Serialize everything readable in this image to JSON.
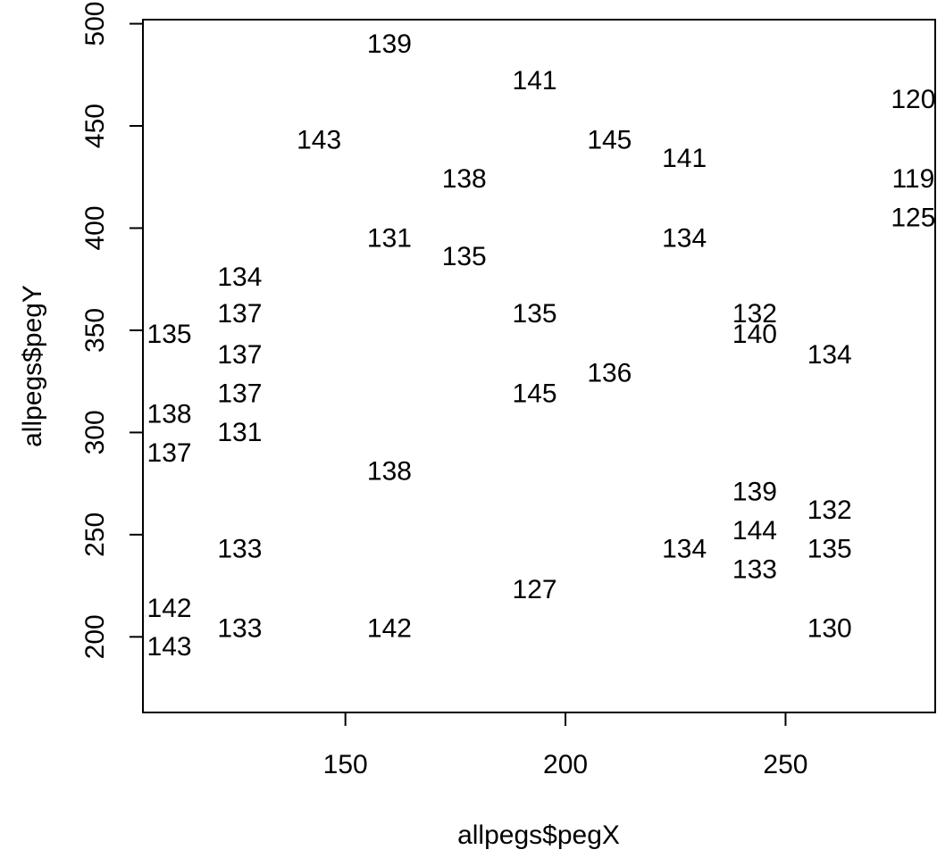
{
  "chart_data": {
    "type": "scatter",
    "title": "",
    "xlabel": "allpegs$pegX",
    "ylabel": "allpegs$pegY",
    "xlim": [
      104,
      284
    ],
    "ylim": [
      163,
      502
    ],
    "xticks": [
      150,
      200,
      250
    ],
    "yticks": [
      200,
      250,
      300,
      350,
      400,
      450,
      500
    ],
    "marker": "text-label",
    "grid": false,
    "points": [
      {
        "x": 160,
        "y": 490,
        "label": "139"
      },
      {
        "x": 193,
        "y": 472,
        "label": "141"
      },
      {
        "x": 279,
        "y": 463,
        "label": "120"
      },
      {
        "x": 144,
        "y": 443,
        "label": "143"
      },
      {
        "x": 210,
        "y": 443,
        "label": "145"
      },
      {
        "x": 227,
        "y": 434,
        "label": "141"
      },
      {
        "x": 177,
        "y": 424,
        "label": "138"
      },
      {
        "x": 279,
        "y": 424,
        "label": "119"
      },
      {
        "x": 279,
        "y": 405,
        "label": "125"
      },
      {
        "x": 160,
        "y": 395,
        "label": "131"
      },
      {
        "x": 227,
        "y": 395,
        "label": "134"
      },
      {
        "x": 177,
        "y": 386,
        "label": "135"
      },
      {
        "x": 126,
        "y": 376,
        "label": "134"
      },
      {
        "x": 243,
        "y": 358,
        "label": "132"
      },
      {
        "x": 126,
        "y": 358,
        "label": "137"
      },
      {
        "x": 193,
        "y": 358,
        "label": "135"
      },
      {
        "x": 110,
        "y": 348,
        "label": "135"
      },
      {
        "x": 243,
        "y": 348,
        "label": "140"
      },
      {
        "x": 126,
        "y": 338,
        "label": "137"
      },
      {
        "x": 260,
        "y": 338,
        "label": "134"
      },
      {
        "x": 210,
        "y": 329,
        "label": "136"
      },
      {
        "x": 126,
        "y": 319,
        "label": "137"
      },
      {
        "x": 193,
        "y": 319,
        "label": "145"
      },
      {
        "x": 110,
        "y": 309,
        "label": "138"
      },
      {
        "x": 126,
        "y": 300,
        "label": "131"
      },
      {
        "x": 110,
        "y": 290,
        "label": "137"
      },
      {
        "x": 160,
        "y": 281,
        "label": "138"
      },
      {
        "x": 243,
        "y": 271,
        "label": "139"
      },
      {
        "x": 260,
        "y": 262,
        "label": "132"
      },
      {
        "x": 243,
        "y": 252,
        "label": "144"
      },
      {
        "x": 126,
        "y": 243,
        "label": "133"
      },
      {
        "x": 227,
        "y": 243,
        "label": "134"
      },
      {
        "x": 260,
        "y": 243,
        "label": "135"
      },
      {
        "x": 243,
        "y": 233,
        "label": "133"
      },
      {
        "x": 193,
        "y": 223,
        "label": "127"
      },
      {
        "x": 110,
        "y": 214,
        "label": "142"
      },
      {
        "x": 126,
        "y": 204,
        "label": "133"
      },
      {
        "x": 160,
        "y": 204,
        "label": "142"
      },
      {
        "x": 260,
        "y": 204,
        "label": "130"
      },
      {
        "x": 110,
        "y": 195,
        "label": "143"
      }
    ]
  }
}
